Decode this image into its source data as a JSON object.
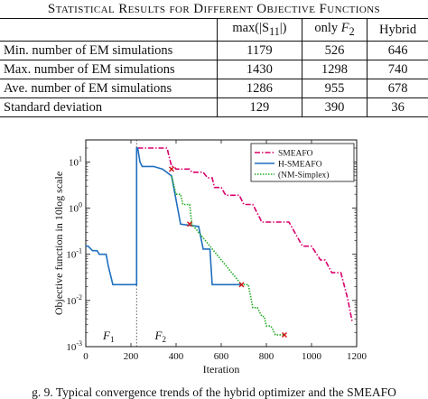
{
  "table": {
    "title": "Statistical Results for Different Objective Functions",
    "headers": [
      "",
      "max(|S11|)",
      "only F2",
      "Hybrid"
    ],
    "rows": [
      {
        "label": "Min. number of EM simulations",
        "values": [
          "1179",
          "526",
          "646"
        ]
      },
      {
        "label": "Max. number of EM simulations",
        "values": [
          "1430",
          "1298",
          "740"
        ]
      },
      {
        "label": "Ave. number of EM simulations",
        "values": [
          "1286",
          "955",
          "678"
        ]
      },
      {
        "label": "Standard deviation",
        "values": [
          "129",
          "390",
          "36"
        ]
      }
    ]
  },
  "chart_data": {
    "type": "line",
    "xlabel": "Iteration",
    "ylabel": "Objective function in 10log scale",
    "xlim": [
      0,
      1200
    ],
    "ylim": [
      0.001,
      30
    ],
    "yscale": "log",
    "x_ticks": [
      "0",
      "200",
      "400",
      "600",
      "800",
      "1000",
      "1200"
    ],
    "y_ticks": [
      "10^-3",
      "10^-2",
      "10^-1",
      "10^0",
      "10^1"
    ],
    "legend_position": "top-right",
    "annotations": [
      {
        "text": "F1",
        "x": 100
      },
      {
        "text": "F2",
        "x": 330
      }
    ],
    "series": [
      {
        "name": "SMEAFO",
        "color": "#d9006c",
        "style": "dashdot",
        "x": [
          230,
          360,
          380,
          390,
          400,
          410,
          420,
          460,
          470,
          480,
          520,
          540,
          560,
          570,
          600,
          620,
          680,
          700,
          740,
          780,
          900,
          960,
          1000,
          1040,
          1060,
          1090,
          1130,
          1160,
          1180
        ],
        "y": [
          20,
          20,
          8,
          8,
          7,
          7,
          7,
          7,
          6,
          6,
          6,
          4.5,
          4.5,
          2.8,
          2.8,
          1.9,
          1.9,
          1.2,
          1.2,
          0.5,
          0.5,
          0.15,
          0.15,
          0.075,
          0.075,
          0.04,
          0.04,
          0.011,
          0.0035
        ]
      },
      {
        "name": "H-SMEAFO",
        "color": "#1f6fc0",
        "style": "solid",
        "x": [
          0,
          10,
          30,
          50,
          60,
          90,
          100,
          120,
          180,
          225,
          225,
          230,
          240,
          250,
          260,
          300,
          340,
          380,
          420,
          500,
          520,
          550,
          560,
          680,
          690
        ],
        "y": [
          0.15,
          0.15,
          0.12,
          0.12,
          0.1,
          0.1,
          0.055,
          0.022,
          0.022,
          0.022,
          20,
          20,
          10,
          8,
          8,
          8,
          7,
          5,
          0.45,
          0.4,
          0.13,
          0.13,
          0.022,
          0.022,
          0.022
        ]
      },
      {
        "name": "(NM-Simplex)",
        "color": "#22aa22",
        "style": "dotted",
        "x": [
          380,
          400,
          420,
          430,
          460,
          470,
          690,
          720,
          740,
          760,
          780,
          790,
          800,
          820,
          840,
          880
        ],
        "y": [
          5,
          2.0,
          2.0,
          1.2,
          1.2,
          0.45,
          0.022,
          0.022,
          0.007,
          0.007,
          0.0045,
          0.0045,
          0.0028,
          0.0028,
          0.0018,
          0.0018
        ]
      }
    ],
    "markers": {
      "color": "#cc1111",
      "points": [
        [
          380,
          7
        ],
        [
          460,
          0.45
        ],
        [
          690,
          0.022
        ],
        [
          880,
          0.0018
        ]
      ]
    }
  },
  "caption": "g. 9.   Typical convergence trends of the hybrid optimizer and the SMEAFO"
}
